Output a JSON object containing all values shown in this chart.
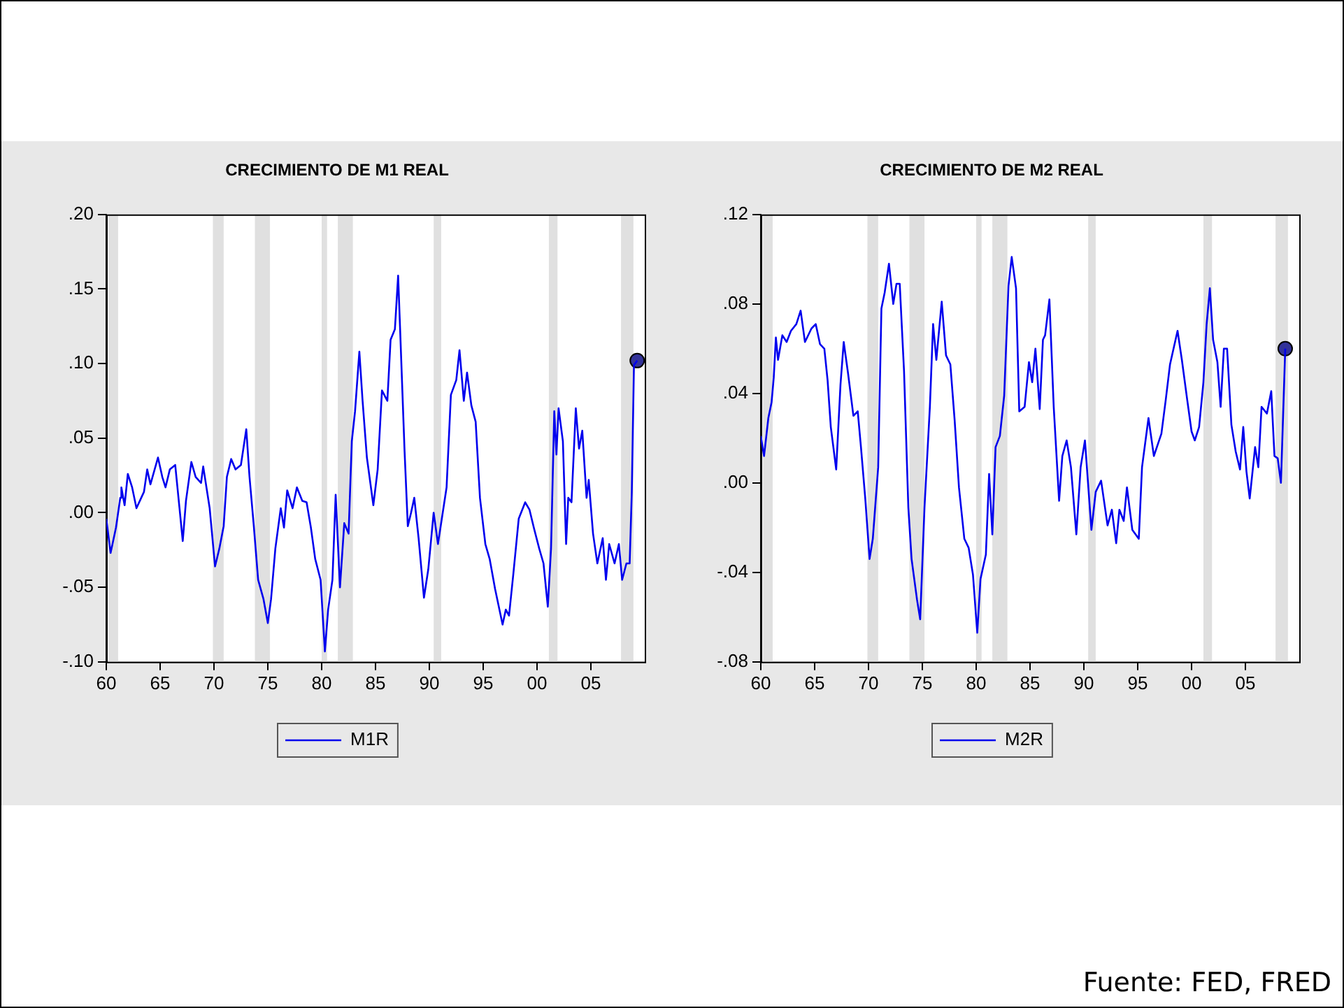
{
  "chart_data": [
    {
      "type": "line",
      "title": "CRECIMIENTO DE M1 REAL",
      "xlim": [
        1960,
        2010
      ],
      "xticks": [
        {
          "value": 1960,
          "label": "60"
        },
        {
          "value": 1965,
          "label": "65"
        },
        {
          "value": 1970,
          "label": "70"
        },
        {
          "value": 1975,
          "label": "75"
        },
        {
          "value": 1980,
          "label": "80"
        },
        {
          "value": 1985,
          "label": "85"
        },
        {
          "value": 1990,
          "label": "90"
        },
        {
          "value": 1995,
          "label": "95"
        },
        {
          "value": 2000,
          "label": "00"
        },
        {
          "value": 2005,
          "label": "05"
        }
      ],
      "ylim": [
        -0.1,
        0.2
      ],
      "yticks": [
        {
          "value": -0.1,
          "label": "-.10"
        },
        {
          "value": -0.05,
          "label": "-.05"
        },
        {
          "value": 0,
          "label": ".00"
        },
        {
          "value": 0.05,
          "label": ".05"
        },
        {
          "value": 0.1,
          "label": ".10"
        },
        {
          "value": 0.15,
          "label": ".15"
        },
        {
          "value": 0.2,
          "label": ".20"
        }
      ],
      "grid": false,
      "legend": "bottom",
      "bands": [
        {
          "axis": "x",
          "from": 1960.2,
          "to": 1961.1,
          "color": "#e0e0e0"
        },
        {
          "axis": "x",
          "from": 1969.9,
          "to": 1970.9,
          "color": "#e0e0e0"
        },
        {
          "axis": "x",
          "from": 1973.8,
          "to": 1975.2,
          "color": "#e0e0e0"
        },
        {
          "axis": "x",
          "from": 1980.0,
          "to": 1980.5,
          "color": "#e0e0e0"
        },
        {
          "axis": "x",
          "from": 1981.5,
          "to": 1982.9,
          "color": "#e0e0e0"
        },
        {
          "axis": "x",
          "from": 1990.4,
          "to": 1991.1,
          "color": "#e0e0e0"
        },
        {
          "axis": "x",
          "from": 2001.1,
          "to": 2001.9,
          "color": "#e0e0e0"
        },
        {
          "axis": "x",
          "from": 2007.8,
          "to": 2008.95,
          "color": "#e0e0e0"
        }
      ],
      "series": [
        {
          "name": "M1R",
          "color": "#0000ee",
          "x": [
            1960.0,
            1960.4,
            1960.9,
            1961.3,
            1961.4,
            1961.7,
            1962.0,
            1962.4,
            1962.8,
            1963.5,
            1963.8,
            1964.1,
            1964.8,
            1965.2,
            1965.5,
            1965.9,
            1966.4,
            1966.8,
            1967.1,
            1967.4,
            1967.9,
            1968.3,
            1968.8,
            1969.0,
            1969.6,
            1970.1,
            1970.5,
            1970.9,
            1971.2,
            1971.6,
            1972.0,
            1972.5,
            1973.0,
            1973.3,
            1973.7,
            1974.1,
            1974.6,
            1975.0,
            1975.3,
            1975.7,
            1976.2,
            1976.5,
            1976.8,
            1977.3,
            1977.7,
            1978.2,
            1978.6,
            1979.0,
            1979.4,
            1979.9,
            1980.3,
            1980.6,
            1981.0,
            1981.3,
            1981.7,
            1982.1,
            1982.5,
            1982.8,
            1983.1,
            1983.5,
            1983.8,
            1984.2,
            1984.8,
            1985.2,
            1985.6,
            1986.1,
            1986.4,
            1986.8,
            1987.1,
            1987.3,
            1987.7,
            1988.0,
            1988.3,
            1988.6,
            1989.0,
            1989.5,
            1989.9,
            1990.4,
            1990.8,
            1991.2,
            1991.6,
            1992.0,
            1992.5,
            1992.8,
            1993.2,
            1993.5,
            1993.9,
            1994.3,
            1994.7,
            1995.2,
            1995.6,
            1996.1,
            1996.8,
            1997.1,
            1997.4,
            1997.8,
            1998.3,
            1998.9,
            1999.3,
            1999.7,
            2000.2,
            2000.6,
            2001.0,
            2001.3,
            2001.6,
            2001.8,
            2002.0,
            2002.4,
            2002.7,
            2002.9,
            2003.2,
            2003.6,
            2003.9,
            2004.2,
            2004.6,
            2004.8,
            2005.2,
            2005.6,
            2006.1,
            2006.4,
            2006.7,
            2007.2,
            2007.6,
            2007.9,
            2008.3,
            2008.6,
            2008.8,
            2009.0,
            2009.3
          ],
          "values": [
            -0.004,
            -0.027,
            -0.01,
            0.01,
            0.017,
            0.005,
            0.026,
            0.017,
            0.003,
            0.014,
            0.029,
            0.019,
            0.037,
            0.024,
            0.017,
            0.029,
            0.032,
            0.003,
            -0.019,
            0.008,
            0.034,
            0.024,
            0.02,
            0.031,
            0.003,
            -0.036,
            -0.024,
            -0.009,
            0.024,
            0.036,
            0.029,
            0.032,
            0.056,
            0.024,
            -0.009,
            -0.045,
            -0.058,
            -0.074,
            -0.058,
            -0.024,
            0.003,
            -0.01,
            0.015,
            0.003,
            0.017,
            0.008,
            0.007,
            -0.01,
            -0.031,
            -0.045,
            -0.093,
            -0.065,
            -0.045,
            0.012,
            -0.05,
            -0.007,
            -0.014,
            0.048,
            0.068,
            0.108,
            0.075,
            0.037,
            0.005,
            0.029,
            0.082,
            0.075,
            0.116,
            0.123,
            0.159,
            0.12,
            0.041,
            -0.009,
            0.0,
            0.01,
            -0.017,
            -0.057,
            -0.038,
            0.0,
            -0.021,
            -0.002,
            0.017,
            0.079,
            0.089,
            0.109,
            0.075,
            0.094,
            0.072,
            0.061,
            0.01,
            -0.021,
            -0.031,
            -0.051,
            -0.075,
            -0.065,
            -0.069,
            -0.041,
            -0.004,
            0.007,
            0.002,
            -0.01,
            -0.024,
            -0.034,
            -0.063,
            -0.024,
            0.068,
            0.039,
            0.07,
            0.048,
            -0.021,
            0.01,
            0.007,
            0.07,
            0.043,
            0.055,
            0.01,
            0.022,
            -0.014,
            -0.034,
            -0.017,
            -0.045,
            -0.021,
            -0.034,
            -0.021,
            -0.045,
            -0.034,
            -0.034,
            0.014,
            0.099,
            0.102
          ]
        },
        {
          "type": "scatter",
          "marker": "circle",
          "color": "#333399",
          "x": [
            2009.3
          ],
          "values": [
            0.102
          ]
        }
      ]
    },
    {
      "type": "line",
      "title": "CRECIMIENTO DE M2 REAL",
      "xlim": [
        1960,
        2010
      ],
      "xticks": [
        {
          "value": 1960,
          "label": "60"
        },
        {
          "value": 1965,
          "label": "65"
        },
        {
          "value": 1970,
          "label": "70"
        },
        {
          "value": 1975,
          "label": "75"
        },
        {
          "value": 1980,
          "label": "80"
        },
        {
          "value": 1985,
          "label": "85"
        },
        {
          "value": 1990,
          "label": "90"
        },
        {
          "value": 1995,
          "label": "95"
        },
        {
          "value": 2000,
          "label": "00"
        },
        {
          "value": 2005,
          "label": "05"
        }
      ],
      "ylim": [
        -0.08,
        0.12
      ],
      "yticks": [
        {
          "value": -0.08,
          "label": "-.08"
        },
        {
          "value": -0.04,
          "label": "-.04"
        },
        {
          "value": 0,
          "label": ".00"
        },
        {
          "value": 0.04,
          "label": ".04"
        },
        {
          "value": 0.08,
          "label": ".08"
        },
        {
          "value": 0.12,
          "label": ".12"
        }
      ],
      "grid": false,
      "legend": "bottom",
      "annotations": [
        "Fuente: FED, FRED"
      ],
      "bands": [
        {
          "axis": "x",
          "from": 1960.2,
          "to": 1961.1,
          "color": "#e0e0e0"
        },
        {
          "axis": "x",
          "from": 1969.9,
          "to": 1970.9,
          "color": "#e0e0e0"
        },
        {
          "axis": "x",
          "from": 1973.8,
          "to": 1975.2,
          "color": "#e0e0e0"
        },
        {
          "axis": "x",
          "from": 1980.0,
          "to": 1980.5,
          "color": "#e0e0e0"
        },
        {
          "axis": "x",
          "from": 1981.5,
          "to": 1982.9,
          "color": "#e0e0e0"
        },
        {
          "axis": "x",
          "from": 1990.4,
          "to": 1991.1,
          "color": "#e0e0e0"
        },
        {
          "axis": "x",
          "from": 2001.1,
          "to": 2001.9,
          "color": "#e0e0e0"
        },
        {
          "axis": "x",
          "from": 2007.8,
          "to": 2008.95,
          "color": "#e0e0e0"
        }
      ],
      "series": [
        {
          "name": "M2R",
          "color": "#0000ee",
          "x": [
            1960.0,
            1960.3,
            1960.7,
            1961.0,
            1961.2,
            1961.4,
            1961.6,
            1962.0,
            1962.4,
            1962.8,
            1963.3,
            1963.7,
            1964.1,
            1964.7,
            1965.1,
            1965.5,
            1965.9,
            1966.2,
            1966.5,
            1967.0,
            1967.4,
            1967.7,
            1968.1,
            1968.6,
            1969.0,
            1969.3,
            1969.7,
            1970.1,
            1970.4,
            1970.9,
            1971.2,
            1971.5,
            1971.9,
            1972.3,
            1972.6,
            1972.9,
            1973.3,
            1973.7,
            1974.0,
            1974.5,
            1974.8,
            1975.2,
            1975.7,
            1976.0,
            1976.3,
            1976.8,
            1977.2,
            1977.6,
            1978.0,
            1978.4,
            1978.9,
            1979.3,
            1979.7,
            1980.1,
            1980.4,
            1980.9,
            1981.2,
            1981.5,
            1981.8,
            1982.2,
            1982.6,
            1983.0,
            1983.3,
            1983.7,
            1984.0,
            1984.5,
            1984.9,
            1985.2,
            1985.5,
            1985.9,
            1986.2,
            1986.4,
            1986.8,
            1987.2,
            1987.7,
            1988.0,
            1988.4,
            1988.8,
            1989.3,
            1989.7,
            1990.1,
            1990.7,
            1991.1,
            1991.6,
            1992.2,
            1992.6,
            1993.0,
            1993.3,
            1993.7,
            1994.0,
            1994.5,
            1995.1,
            1995.4,
            1996.0,
            1996.5,
            1997.2,
            1997.6,
            1998.0,
            1998.7,
            1999.1,
            1999.6,
            2000.0,
            2000.3,
            2000.7,
            2001.1,
            2001.4,
            2001.7,
            2002.0,
            2002.4,
            2002.7,
            2003.0,
            2003.3,
            2003.7,
            2004.1,
            2004.5,
            2004.8,
            2005.1,
            2005.4,
            2005.9,
            2006.2,
            2006.5,
            2007.0,
            2007.4,
            2007.7,
            2008.0,
            2008.3,
            2008.5,
            2008.7
          ],
          "values": [
            0.021,
            0.012,
            0.029,
            0.036,
            0.047,
            0.065,
            0.055,
            0.066,
            0.063,
            0.068,
            0.071,
            0.077,
            0.063,
            0.069,
            0.071,
            0.062,
            0.06,
            0.046,
            0.025,
            0.006,
            0.044,
            0.063,
            0.049,
            0.03,
            0.032,
            0.016,
            -0.007,
            -0.034,
            -0.025,
            0.007,
            0.078,
            0.085,
            0.098,
            0.08,
            0.089,
            0.089,
            0.05,
            -0.011,
            -0.034,
            -0.052,
            -0.061,
            -0.011,
            0.034,
            0.071,
            0.055,
            0.081,
            0.057,
            0.053,
            0.028,
            -0.002,
            -0.025,
            -0.029,
            -0.041,
            -0.067,
            -0.043,
            -0.032,
            0.004,
            -0.023,
            0.016,
            0.021,
            0.039,
            0.088,
            0.101,
            0.087,
            0.032,
            0.034,
            0.054,
            0.045,
            0.06,
            0.033,
            0.064,
            0.066,
            0.082,
            0.034,
            -0.008,
            0.012,
            0.019,
            0.007,
            -0.023,
            0.007,
            0.019,
            -0.021,
            -0.004,
            0.001,
            -0.019,
            -0.012,
            -0.027,
            -0.012,
            -0.017,
            -0.002,
            -0.021,
            -0.025,
            0.007,
            0.029,
            0.012,
            0.022,
            0.037,
            0.053,
            0.068,
            0.055,
            0.037,
            0.023,
            0.019,
            0.025,
            0.045,
            0.071,
            0.087,
            0.064,
            0.054,
            0.034,
            0.06,
            0.06,
            0.026,
            0.014,
            0.006,
            0.025,
            0.005,
            -0.007,
            0.016,
            0.007,
            0.034,
            0.031,
            0.041,
            0.012,
            0.011,
            0.0,
            0.03,
            0.06
          ]
        },
        {
          "type": "scatter",
          "marker": "circle",
          "color": "#333399",
          "x": [
            2008.7
          ],
          "values": [
            0.06
          ]
        }
      ]
    }
  ]
}
